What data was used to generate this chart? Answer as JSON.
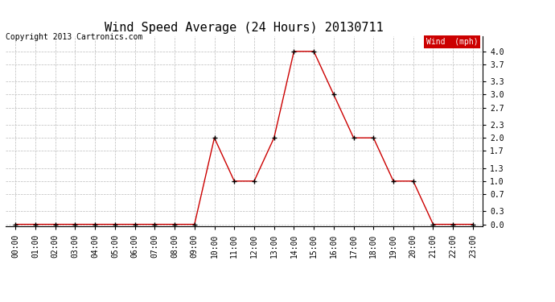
{
  "title": "Wind Speed Average (24 Hours) 20130711",
  "copyright": "Copyright 2013 Cartronics.com",
  "legend_label": "Wind  (mph)",
  "x_labels": [
    "00:00",
    "01:00",
    "02:00",
    "03:00",
    "04:00",
    "05:00",
    "06:00",
    "07:00",
    "08:00",
    "09:00",
    "10:00",
    "11:00",
    "12:00",
    "13:00",
    "14:00",
    "15:00",
    "16:00",
    "17:00",
    "18:00",
    "19:00",
    "20:00",
    "21:00",
    "22:00",
    "23:00"
  ],
  "y_values": [
    0.0,
    0.0,
    0.0,
    0.0,
    0.0,
    0.0,
    0.0,
    0.0,
    0.0,
    0.0,
    2.0,
    1.0,
    1.0,
    2.0,
    4.0,
    4.0,
    3.0,
    2.0,
    2.0,
    1.0,
    1.0,
    0.0,
    0.0,
    0.0
  ],
  "y_ticks": [
    0.0,
    0.3,
    0.7,
    1.0,
    1.3,
    1.7,
    2.0,
    2.3,
    2.7,
    3.0,
    3.3,
    3.7,
    4.0
  ],
  "line_color": "#cc0000",
  "marker_color": "#000000",
  "bg_color": "#ffffff",
  "grid_color": "#bbbbbb",
  "title_fontsize": 11,
  "tick_fontsize": 7,
  "copyright_fontsize": 7,
  "legend_bg": "#cc0000",
  "legend_text_color": "#ffffff",
  "legend_fontsize": 7,
  "figwidth": 6.9,
  "figheight": 3.75,
  "dpi": 100
}
